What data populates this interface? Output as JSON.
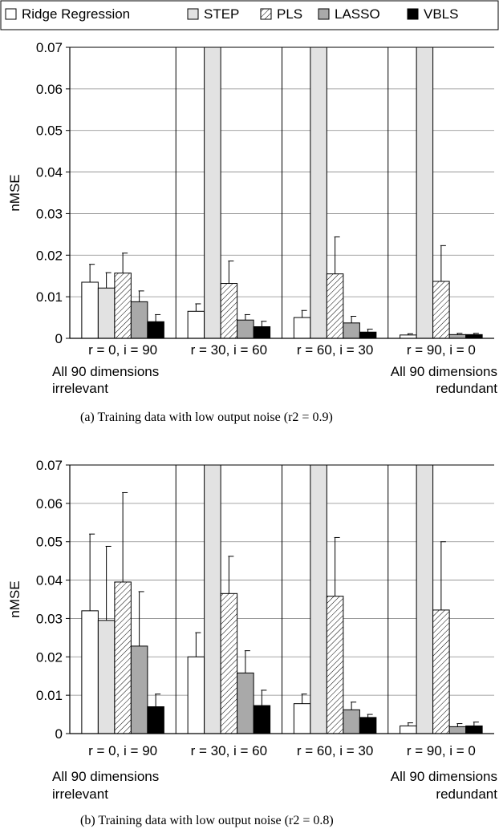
{
  "legend": [
    {
      "label": "Ridge Regression",
      "style": "white"
    },
    {
      "label": "STEP",
      "style": "lightgray"
    },
    {
      "label": "PLS",
      "style": "hatch"
    },
    {
      "label": "LASSO",
      "style": "gray"
    },
    {
      "label": "VBLS",
      "style": "black"
    }
  ],
  "colors": {
    "white": "#ffffff",
    "lightgray": "#e2e2e2",
    "gray": "#a9a9a9",
    "black": "#000000",
    "grid": "#888888"
  },
  "chart_data": [
    {
      "type": "bar",
      "title": "",
      "caption": "(a) Training data with low output noise (r2 = 0.9)",
      "ylabel": "nMSE",
      "ylim": [
        0,
        0.07
      ],
      "yticks": [
        "0",
        "0.01",
        "0.02",
        "0.03",
        "0.04",
        "0.05",
        "0.06",
        "0.07"
      ],
      "categories": [
        "r = 0, i = 90",
        "r = 30, i = 60",
        "r = 60, i = 30",
        "r = 90, i = 0"
      ],
      "annotation_left": [
        "All 90 dimensions",
        "irrelevant"
      ],
      "annotation_right": [
        "All 90 dimensions",
        "redundant"
      ],
      "series": [
        {
          "name": "Ridge Regression",
          "values": [
            0.0135,
            0.0065,
            0.005,
            0.0008
          ],
          "errors": [
            0.0043,
            0.0018,
            0.0017,
            0.0003
          ]
        },
        {
          "name": "STEP",
          "values": [
            0.0121,
            0.07,
            0.07,
            0.07
          ],
          "errors": [
            0.0037,
            0,
            0,
            0
          ]
        },
        {
          "name": "PLS",
          "values": [
            0.0157,
            0.0132,
            0.0155,
            0.0137
          ],
          "errors": [
            0.0048,
            0.0054,
            0.0089,
            0.0086
          ]
        },
        {
          "name": "LASSO",
          "values": [
            0.0088,
            0.0044,
            0.0037,
            0.0009
          ],
          "errors": [
            0.0026,
            0.0013,
            0.0016,
            0.0003
          ]
        },
        {
          "name": "VBLS",
          "values": [
            0.004,
            0.0028,
            0.0015,
            0.0009
          ],
          "errors": [
            0.0017,
            0.0013,
            0.0007,
            0.0003
          ]
        }
      ]
    },
    {
      "type": "bar",
      "title": "",
      "caption": "(b) Training data with low output noise (r2 = 0.8)",
      "ylabel": "nMSE",
      "ylim": [
        0,
        0.07
      ],
      "yticks": [
        "0",
        "0.01",
        "0.02",
        "0.03",
        "0.04",
        "0.05",
        "0.06",
        "0.07"
      ],
      "categories": [
        "r = 0, i = 90",
        "r = 30, i = 60",
        "r = 60, i = 30",
        "r = 90, i = 0"
      ],
      "annotation_left": [
        "All 90 dimensions",
        "irrelevant"
      ],
      "annotation_right": [
        "All 90 dimensions",
        "redundant"
      ],
      "series": [
        {
          "name": "Ridge Regression",
          "values": [
            0.032,
            0.02,
            0.0078,
            0.002
          ],
          "errors": [
            0.02,
            0.0063,
            0.0025,
            0.0008
          ]
        },
        {
          "name": "STEP",
          "values": [
            0.0295,
            0.07,
            0.07,
            0.07
          ],
          "errors": [
            0.0193,
            0,
            0,
            0
          ]
        },
        {
          "name": "PLS",
          "values": [
            0.0395,
            0.0365,
            0.0358,
            0.0322
          ],
          "errors": [
            0.0233,
            0.0097,
            0.0153,
            0.0178
          ]
        },
        {
          "name": "LASSO",
          "values": [
            0.0228,
            0.0158,
            0.0062,
            0.0018
          ],
          "errors": [
            0.0142,
            0.0058,
            0.002,
            0.0008
          ]
        },
        {
          "name": "VBLS",
          "values": [
            0.007,
            0.0073,
            0.0042,
            0.002
          ],
          "errors": [
            0.0033,
            0.004,
            0.0008,
            0.001
          ]
        }
      ]
    }
  ]
}
